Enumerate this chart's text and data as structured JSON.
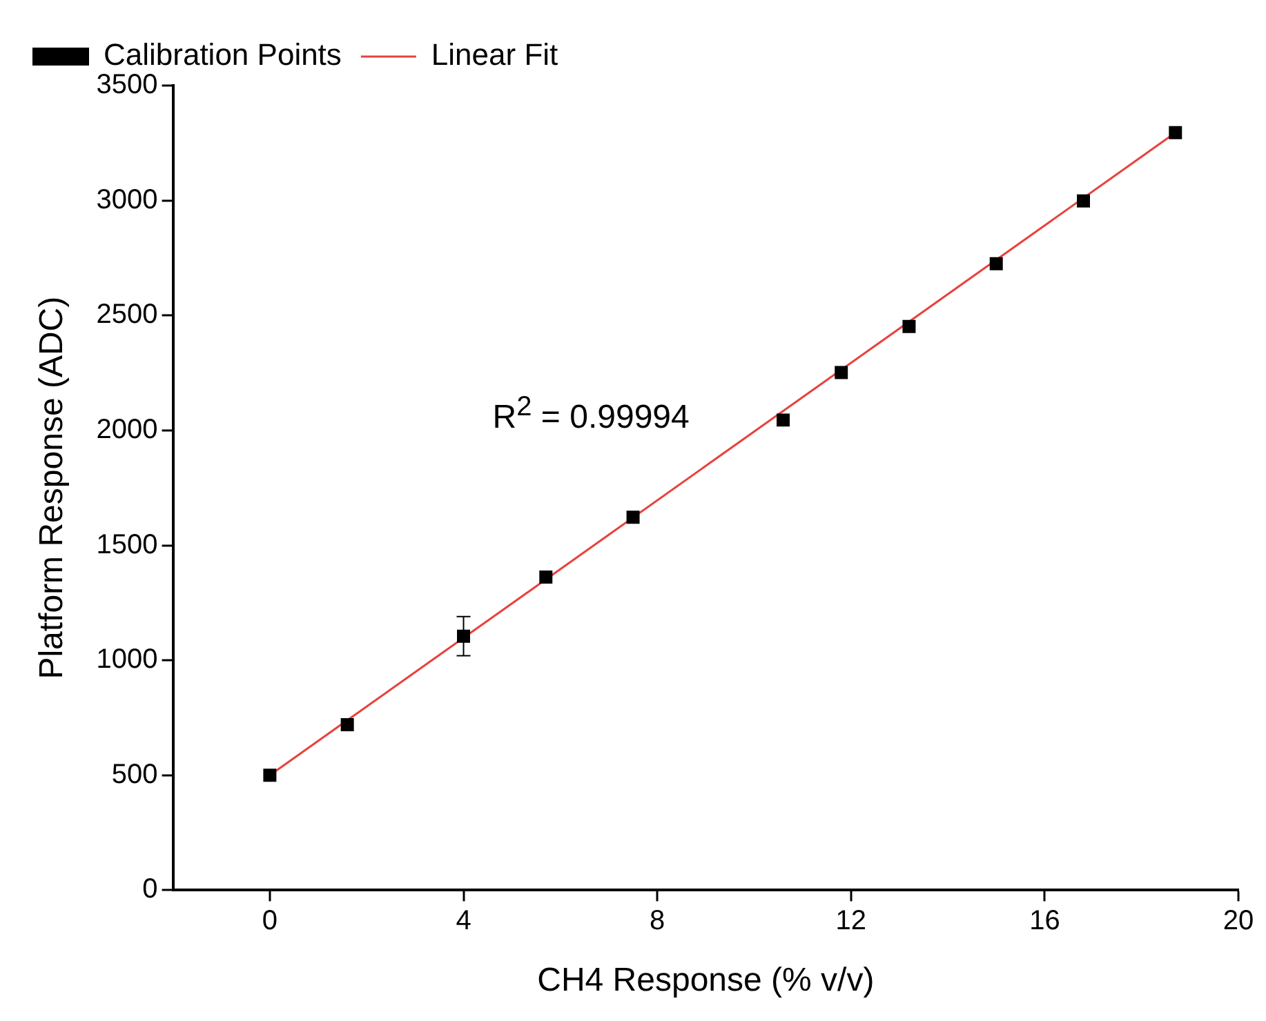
{
  "chart_data": {
    "type": "scatter",
    "xlabel": "CH4 Response (% v/v)",
    "ylabel": "Platform Response (ADC)",
    "x": [
      0,
      1.6,
      4,
      5.7,
      7.5,
      10.6,
      11.8,
      13.2,
      15,
      16.8,
      18.7
    ],
    "series": [
      {
        "name": "Calibration Points",
        "type": "scatter",
        "color": "#000000",
        "marker": "square",
        "values": [
          500,
          720,
          1105,
          1362,
          1622,
          2045,
          2252,
          2452,
          2725,
          2998,
          3295
        ],
        "errors": [
          null,
          null,
          85,
          null,
          null,
          null,
          null,
          null,
          null,
          null,
          null
        ]
      },
      {
        "name": "Linear Fit",
        "type": "line",
        "color": "#e8413c",
        "marker": "none",
        "line_style": "solid",
        "x": [
          0,
          18.7
        ],
        "values": [
          500,
          3295
        ]
      }
    ],
    "xlim": [
      -2,
      20
    ],
    "xticks": [
      0,
      4,
      8,
      12,
      16,
      20
    ],
    "ylim": [
      0,
      3500
    ],
    "yticks": [
      0,
      500,
      1000,
      1500,
      2000,
      2500,
      3000,
      3500
    ],
    "grid": false,
    "legend": "top left",
    "annotations": [
      "R$^{2}$ = 0.99994"
    ]
  }
}
